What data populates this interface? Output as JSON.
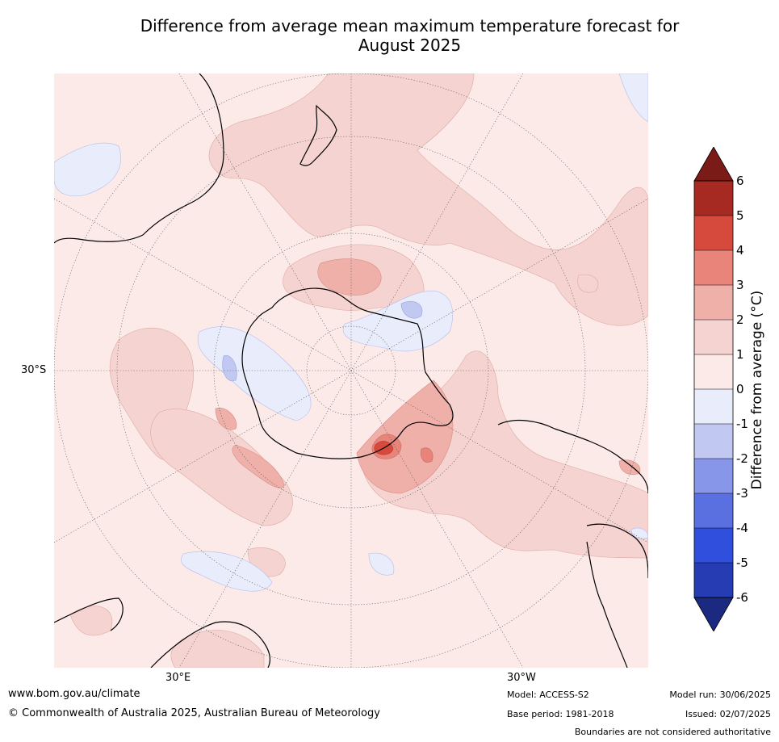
{
  "title_line1": "Difference from average mean maximum temperature forecast for",
  "title_line2": "August 2025",
  "axes": {
    "lat_label": "30°S",
    "lon_label_left": "30°E",
    "lon_label_right": "30°W"
  },
  "colorbar": {
    "label": "Difference from average (°C)",
    "ticks": [
      "6",
      "5",
      "4",
      "3",
      "2",
      "1",
      "0",
      "-1",
      "-2",
      "-3",
      "-4",
      "-5",
      "-6"
    ],
    "colors_top_to_bottom": [
      "#a62a22",
      "#d64a3d",
      "#e8847a",
      "#efb0a9",
      "#f5d3d0",
      "#fbeae8",
      "#e8ecfb",
      "#c1c8f2",
      "#8896ea",
      "#5a70e0",
      "#2f4fdc",
      "#253cb3"
    ],
    "extend_high_color": "#7a1b17",
    "extend_low_color": "#1b2a80"
  },
  "footer": {
    "website": "www.bom.gov.au/climate",
    "copyright": "© Commonwealth of Australia 2025, Australian Bureau of Meteorology",
    "model": "Model: ACCESS-S2",
    "base_period": "Base period: 1981-2018",
    "model_run": "Model run: 30/06/2025",
    "issued": "Issued: 02/07/2025",
    "disclaimer": "Boundaries are not considered authoritative"
  }
}
